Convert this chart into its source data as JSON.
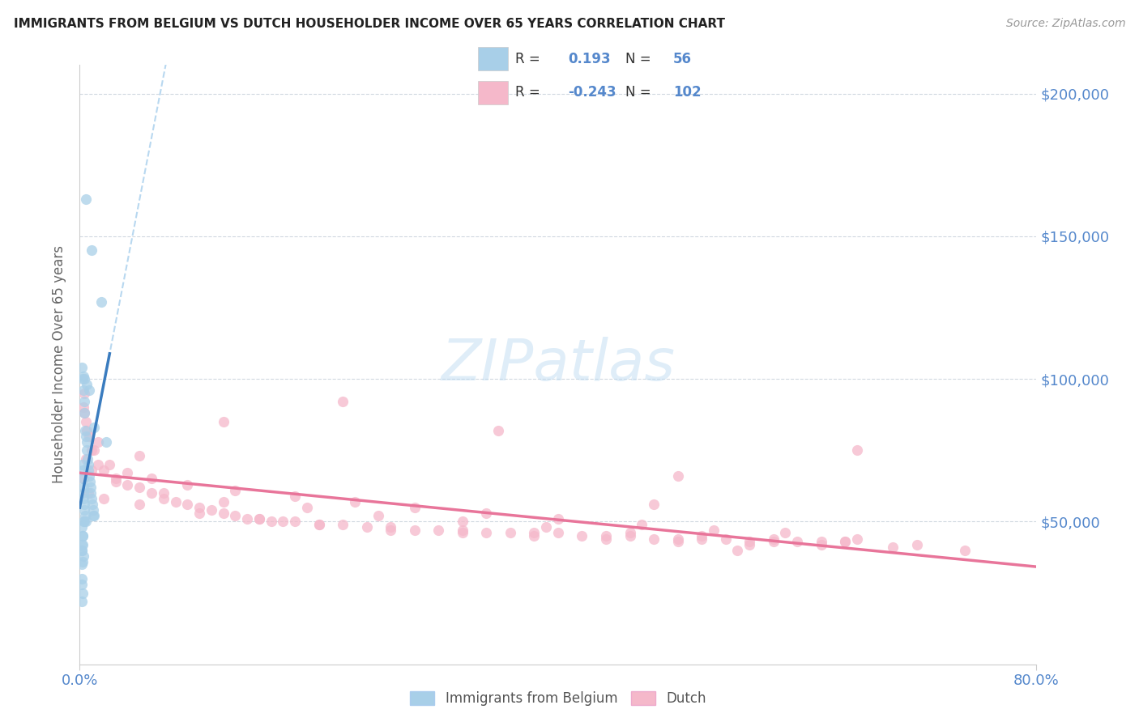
{
  "title": "IMMIGRANTS FROM BELGIUM VS DUTCH HOUSEHOLDER INCOME OVER 65 YEARS CORRELATION CHART",
  "source": "Source: ZipAtlas.com",
  "ylabel": "Householder Income Over 65 years",
  "y_ticks": [
    50000,
    100000,
    150000,
    200000
  ],
  "y_tick_labels": [
    "$50,000",
    "$100,000",
    "$150,000",
    "$200,000"
  ],
  "legend_blue_r": "0.193",
  "legend_blue_n": "56",
  "legend_pink_r": "-0.243",
  "legend_pink_n": "102",
  "legend_label_blue": "Immigrants from Belgium",
  "legend_label_pink": "Dutch",
  "blue_scatter_color": "#a8cfe8",
  "pink_scatter_color": "#f5b8ca",
  "blue_line_color": "#3a7cbf",
  "pink_line_color": "#e8759a",
  "dashed_line_color": "#b8d8f0",
  "axis_tick_color": "#5588cc",
  "belgium_x": [
    0.5,
    1.0,
    1.8,
    0.3,
    0.4,
    0.6,
    0.8,
    1.2,
    2.2,
    0.2,
    0.25,
    0.3,
    0.35,
    0.4,
    0.45,
    0.5,
    0.55,
    0.6,
    0.65,
    0.7,
    0.75,
    0.8,
    0.85,
    0.9,
    0.95,
    1.0,
    1.05,
    1.1,
    1.15,
    1.2,
    0.2,
    0.22,
    0.25,
    0.28,
    0.3,
    0.32,
    0.35,
    0.4,
    0.42,
    0.5,
    0.3,
    0.35,
    0.2,
    0.25,
    0.22,
    0.2,
    0.3,
    0.25,
    0.2,
    0.18,
    0.2,
    0.22,
    0.18,
    0.2,
    0.25,
    0.18
  ],
  "belgium_y": [
    163000,
    145000,
    127000,
    101000,
    100000,
    98000,
    96000,
    83000,
    78000,
    104000,
    100000,
    96000,
    92000,
    88000,
    82000,
    80000,
    78000,
    75000,
    72000,
    70000,
    68000,
    66000,
    64000,
    62000,
    60000,
    58000,
    56000,
    54000,
    52000,
    52000,
    70000,
    68000,
    65000,
    62000,
    60000,
    58000,
    56000,
    54000,
    52000,
    50000,
    50000,
    50000,
    48000,
    45000,
    42000,
    40000,
    38000,
    36000,
    35000,
    30000,
    28000,
    25000,
    40000,
    42000,
    45000,
    22000
  ],
  "dutch_x": [
    0.3,
    0.5,
    0.8,
    1.0,
    1.5,
    2.0,
    3.0,
    4.0,
    5.0,
    6.0,
    7.0,
    8.0,
    9.0,
    10.0,
    11.0,
    12.0,
    13.0,
    14.0,
    15.0,
    16.0,
    17.0,
    18.0,
    20.0,
    22.0,
    24.0,
    26.0,
    28.0,
    30.0,
    32.0,
    34.0,
    36.0,
    38.0,
    40.0,
    42.0,
    44.0,
    46.0,
    48.0,
    50.0,
    52.0,
    54.0,
    56.0,
    58.0,
    60.0,
    62.0,
    64.0,
    0.4,
    0.6,
    1.2,
    2.5,
    4.0,
    6.0,
    9.0,
    13.0,
    18.0,
    23.0,
    28.0,
    34.0,
    40.0,
    47.0,
    53.0,
    59.0,
    65.0,
    0.3,
    0.7,
    2.0,
    5.0,
    10.0,
    15.0,
    20.0,
    26.0,
    32.0,
    38.0,
    44.0,
    50.0,
    56.0,
    62.0,
    68.0,
    74.0,
    0.5,
    1.0,
    3.0,
    7.0,
    12.0,
    19.0,
    25.0,
    32.0,
    39.0,
    46.0,
    52.0,
    58.0,
    64.0,
    70.0,
    0.4,
    1.5,
    5.0,
    12.0,
    22.0,
    35.0,
    50.0,
    65.0,
    48.0,
    55.0
  ],
  "dutch_y": [
    90000,
    85000,
    80000,
    75000,
    70000,
    68000,
    65000,
    63000,
    62000,
    60000,
    58000,
    57000,
    56000,
    55000,
    54000,
    53000,
    52000,
    51000,
    51000,
    50000,
    50000,
    50000,
    49000,
    49000,
    48000,
    48000,
    47000,
    47000,
    47000,
    46000,
    46000,
    46000,
    46000,
    45000,
    45000,
    45000,
    44000,
    44000,
    44000,
    44000,
    43000,
    43000,
    43000,
    43000,
    43000,
    88000,
    82000,
    75000,
    70000,
    67000,
    65000,
    63000,
    61000,
    59000,
    57000,
    55000,
    53000,
    51000,
    49000,
    47000,
    46000,
    44000,
    65000,
    60000,
    58000,
    56000,
    53000,
    51000,
    49000,
    47000,
    46000,
    45000,
    44000,
    43000,
    42000,
    42000,
    41000,
    40000,
    72000,
    68000,
    64000,
    60000,
    57000,
    55000,
    52000,
    50000,
    48000,
    46000,
    45000,
    44000,
    43000,
    42000,
    95000,
    78000,
    73000,
    85000,
    92000,
    82000,
    66000,
    75000,
    56000,
    40000
  ]
}
